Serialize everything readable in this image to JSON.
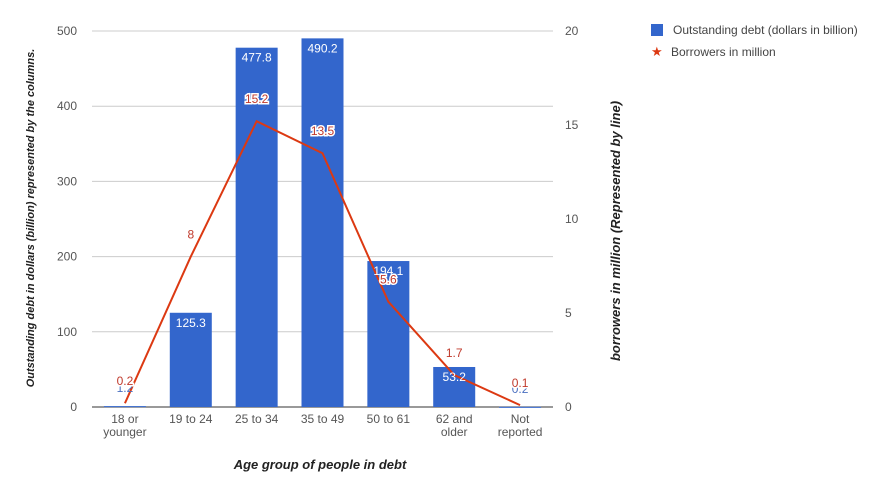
{
  "chart_data": {
    "type": "bar",
    "categories": [
      "18 or younger",
      "19 to 24",
      "25 to 34",
      "35 to 49",
      "50 to 61",
      "62 and older",
      "Not reported"
    ],
    "category_lines": [
      [
        "18 or",
        "younger"
      ],
      [
        "19 to 24"
      ],
      [
        "25 to 34"
      ],
      [
        "35 to 49"
      ],
      [
        "50 to 61"
      ],
      [
        "62 and",
        "older"
      ],
      [
        "Not",
        "reported"
      ]
    ],
    "series": [
      {
        "name": "Outstanding debt (dollars in billion)",
        "type": "bar",
        "axis": "left",
        "values": [
          1.2,
          125.3,
          477.8,
          490.2,
          194.1,
          53.2,
          0.2
        ],
        "labels": [
          "1.2",
          "125.3",
          "477.8",
          "490.2",
          "194.1",
          "53.2",
          "0.2"
        ]
      },
      {
        "name": "Borrowers in million",
        "type": "line",
        "axis": "right",
        "values": [
          0.2,
          8,
          15.2,
          13.5,
          5.6,
          1.7,
          0.1
        ],
        "labels": [
          "0.2",
          "8",
          "15.2",
          "13.5",
          "5.6",
          "1.7",
          "0.1"
        ]
      }
    ],
    "xlabel": "Age group of people in debt",
    "ylabel": "Outstanding debt in dollars (billion) represented by the columns.",
    "y2label": "borrowers in million (Represented by line)",
    "ylim": [
      0,
      500
    ],
    "y2lim": [
      0,
      20
    ],
    "yticks": [
      0,
      100,
      200,
      300,
      400,
      500
    ],
    "y2ticks": [
      0,
      5,
      10,
      15,
      20
    ],
    "grid": true,
    "legend_position": "top-right",
    "colors": {
      "bar": "#3366cc",
      "line": "#dc3912",
      "grid": "#cccccc",
      "axis": "#333333"
    }
  }
}
